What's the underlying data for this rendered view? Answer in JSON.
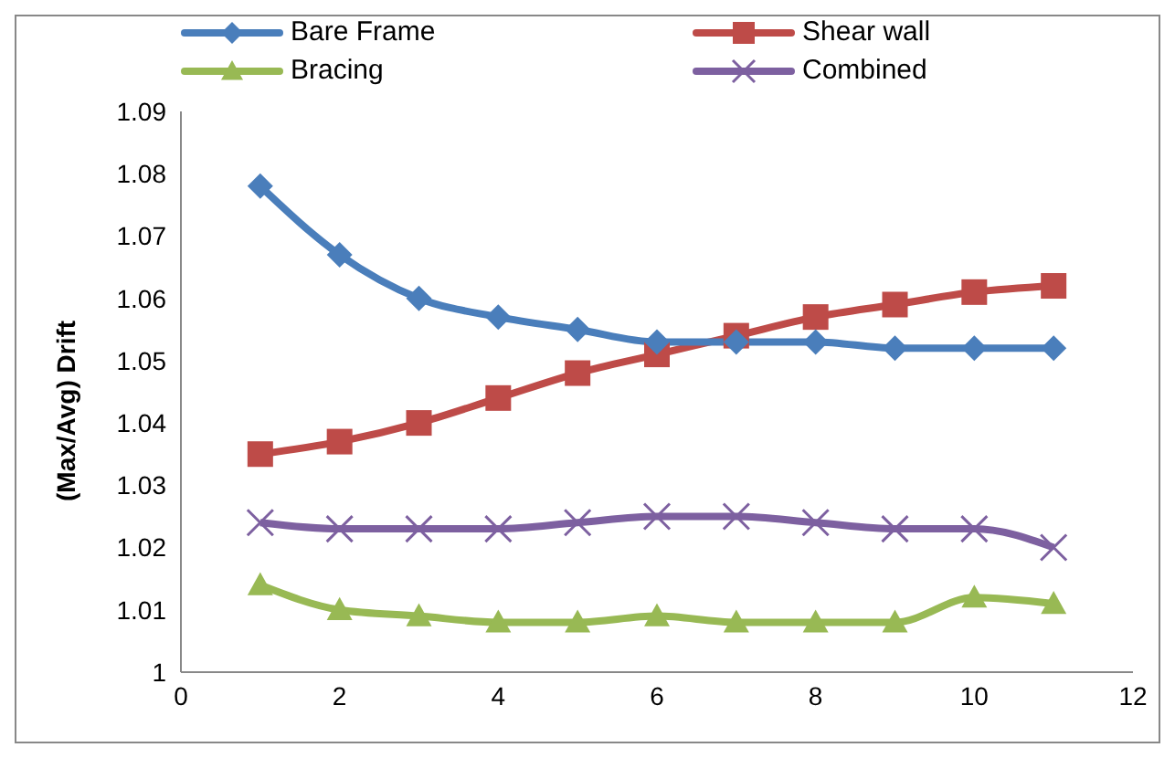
{
  "chart_data": {
    "type": "line",
    "ylabel": "(Max/Avg) Drift",
    "x": [
      1,
      2,
      3,
      4,
      5,
      6,
      7,
      8,
      9,
      10,
      11
    ],
    "xlim": [
      0,
      12
    ],
    "xticks": [
      0,
      2,
      4,
      6,
      8,
      10,
      12
    ],
    "ylim": [
      1,
      1.09
    ],
    "yticks": [
      1,
      1.01,
      1.02,
      1.03,
      1.04,
      1.05,
      1.06,
      1.07,
      1.08,
      1.09
    ],
    "grid": false,
    "legend": "top",
    "series": [
      {
        "name": "Bare Frame",
        "color": "#4a7ebb",
        "marker": "diamond",
        "values": [
          1.078,
          1.067,
          1.06,
          1.057,
          1.055,
          1.053,
          1.053,
          1.053,
          1.052,
          1.052,
          1.052
        ]
      },
      {
        "name": "Shear wall",
        "color": "#be4b48",
        "marker": "square",
        "values": [
          1.035,
          1.037,
          1.04,
          1.044,
          1.048,
          1.051,
          1.054,
          1.057,
          1.059,
          1.061,
          1.062
        ]
      },
      {
        "name": "Bracing",
        "color": "#98b954",
        "marker": "triangle",
        "values": [
          1.014,
          1.01,
          1.009,
          1.008,
          1.008,
          1.009,
          1.008,
          1.008,
          1.008,
          1.012,
          1.011
        ]
      },
      {
        "name": "Combined",
        "color": "#7d60a0",
        "marker": "cross",
        "values": [
          1.024,
          1.023,
          1.023,
          1.023,
          1.024,
          1.025,
          1.025,
          1.024,
          1.023,
          1.023,
          1.02
        ]
      }
    ]
  }
}
